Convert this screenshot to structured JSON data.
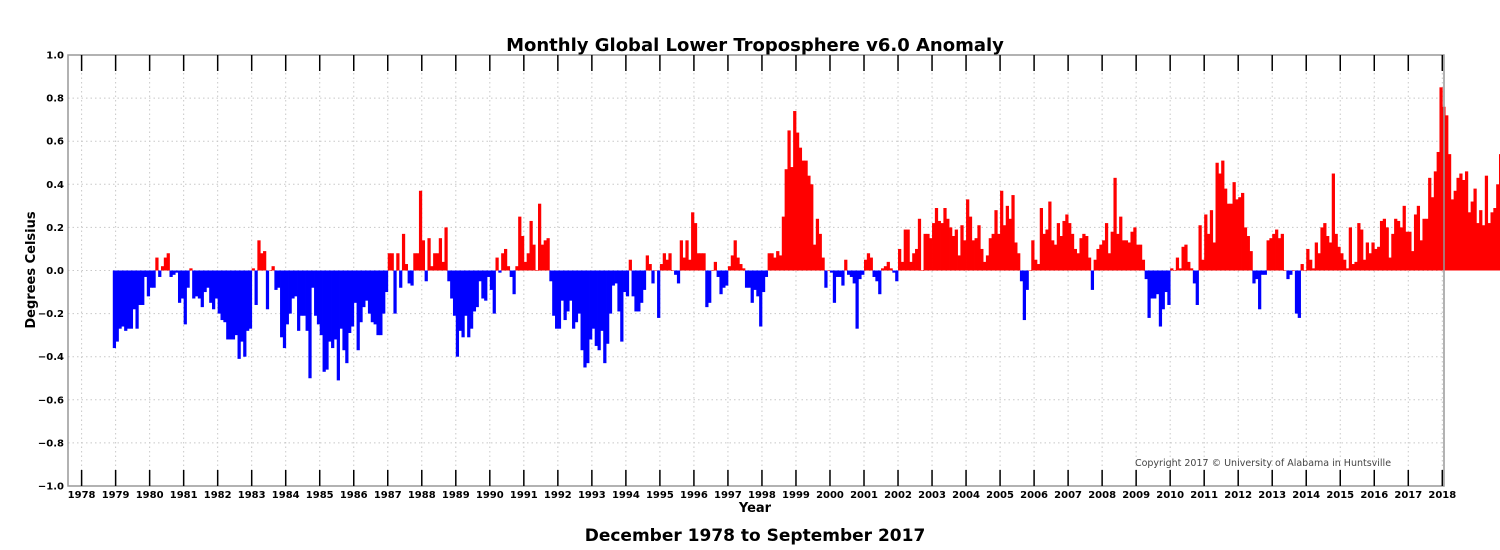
{
  "chart_data": {
    "type": "bar",
    "title": "Monthly Global Lower Troposphere v6.0 Anomaly",
    "subtitle": "December 1978 to September 2017",
    "xlabel": "Year",
    "ylabel": "Degrees Celsius",
    "annotation": "Copyright 2017 © University of Alabama in Huntsville",
    "ylim": [
      -1.0,
      1.0
    ],
    "xlim": [
      1977.6,
      2018.05
    ],
    "yticks": [
      -1.0,
      -0.8,
      -0.6,
      -0.4,
      -0.2,
      0.0,
      0.2,
      0.4,
      0.6,
      0.8,
      1.0
    ],
    "ytick_labels": [
      "−1.0",
      "−0.8",
      "−0.6",
      "−0.4",
      "−0.2",
      "0.0",
      "0.2",
      "0.4",
      "0.6",
      "0.8",
      "1.0"
    ],
    "xticks": [
      1978,
      1979,
      1980,
      1981,
      1982,
      1983,
      1984,
      1985,
      1986,
      1987,
      1988,
      1989,
      1990,
      1991,
      1992,
      1993,
      1994,
      1995,
      1996,
      1997,
      1998,
      1999,
      2000,
      2001,
      2002,
      2003,
      2004,
      2005,
      2006,
      2007,
      2008,
      2009,
      2010,
      2011,
      2012,
      2013,
      2014,
      2015,
      2016,
      2017,
      2018
    ],
    "grid": true,
    "positive_color": "#ff0000",
    "negative_color": "#0000ff",
    "start": {
      "year": 1978,
      "month": 12
    },
    "end": {
      "year": 2017,
      "month": 9
    },
    "monthly_values": [
      -0.36,
      -0.33,
      -0.27,
      -0.26,
      -0.28,
      -0.27,
      -0.27,
      -0.18,
      -0.27,
      -0.16,
      -0.16,
      -0.03,
      -0.12,
      -0.08,
      -0.08,
      0.06,
      -0.03,
      0.02,
      0.06,
      0.08,
      -0.03,
      -0.02,
      -0.01,
      -0.15,
      -0.13,
      -0.25,
      -0.08,
      0.01,
      -0.13,
      -0.12,
      -0.13,
      -0.17,
      -0.1,
      -0.08,
      -0.15,
      -0.18,
      -0.13,
      -0.2,
      -0.23,
      -0.24,
      -0.32,
      -0.32,
      -0.32,
      -0.3,
      -0.41,
      -0.33,
      -0.4,
      -0.28,
      -0.27,
      0.01,
      -0.16,
      0.14,
      0.08,
      0.09,
      -0.18,
      0.0,
      0.02,
      -0.09,
      -0.08,
      -0.31,
      -0.36,
      -0.25,
      -0.2,
      -0.13,
      -0.12,
      -0.28,
      -0.21,
      -0.21,
      -0.28,
      -0.5,
      -0.08,
      -0.21,
      -0.25,
      -0.3,
      -0.47,
      -0.46,
      -0.33,
      -0.36,
      -0.32,
      -0.51,
      -0.27,
      -0.37,
      -0.43,
      -0.29,
      -0.26,
      -0.15,
      -0.37,
      -0.24,
      -0.17,
      -0.14,
      -0.2,
      -0.24,
      -0.25,
      -0.3,
      -0.3,
      -0.2,
      -0.1,
      0.08,
      0.08,
      -0.2,
      0.08,
      -0.08,
      0.17,
      0.03,
      -0.06,
      -0.07,
      0.08,
      0.08,
      0.37,
      0.14,
      -0.05,
      0.15,
      0.02,
      0.08,
      0.08,
      0.15,
      0.04,
      0.2,
      -0.05,
      -0.13,
      -0.21,
      -0.4,
      -0.28,
      -0.31,
      -0.21,
      -0.31,
      -0.27,
      -0.19,
      -0.17,
      -0.05,
      -0.13,
      -0.14,
      -0.03,
      -0.09,
      -0.2,
      0.06,
      -0.01,
      0.08,
      0.1,
      0.02,
      -0.03,
      -0.11,
      0.02,
      0.25,
      0.16,
      0.04,
      0.08,
      0.23,
      0.12,
      0.0,
      0.31,
      0.12,
      0.14,
      0.15,
      -0.05,
      -0.21,
      -0.27,
      -0.27,
      -0.14,
      -0.23,
      -0.19,
      -0.14,
      -0.27,
      -0.24,
      -0.2,
      -0.37,
      -0.45,
      -0.43,
      -0.32,
      -0.27,
      -0.35,
      -0.37,
      -0.28,
      -0.43,
      -0.34,
      -0.2,
      -0.07,
      -0.06,
      -0.19,
      -0.33,
      -0.1,
      -0.12,
      0.05,
      -0.12,
      -0.19,
      -0.19,
      -0.15,
      -0.09,
      0.07,
      0.03,
      -0.06,
      0.0,
      -0.22,
      0.03,
      0.08,
      0.05,
      0.08,
      0.0,
      -0.02,
      -0.06,
      0.14,
      0.06,
      0.14,
      0.05,
      0.27,
      0.22,
      0.08,
      0.08,
      0.08,
      -0.17,
      -0.15,
      0.0,
      0.04,
      -0.03,
      -0.11,
      -0.08,
      -0.07,
      0.02,
      0.07,
      0.14,
      0.06,
      0.03,
      0.01,
      -0.08,
      -0.08,
      -0.15,
      -0.09,
      -0.12,
      -0.26,
      -0.1,
      -0.03,
      0.08,
      0.08,
      0.06,
      0.09,
      0.07,
      0.25,
      0.47,
      0.65,
      0.48,
      0.74,
      0.64,
      0.57,
      0.51,
      0.51,
      0.44,
      0.4,
      0.12,
      0.24,
      0.17,
      0.06,
      -0.08,
      0.0,
      -0.01,
      -0.15,
      -0.03,
      -0.03,
      -0.07,
      0.05,
      -0.02,
      -0.03,
      -0.06,
      -0.27,
      -0.04,
      -0.02,
      0.05,
      0.08,
      0.06,
      -0.03,
      -0.05,
      -0.11,
      0.01,
      0.02,
      0.04,
      0.01,
      -0.01,
      -0.05,
      0.1,
      0.04,
      0.19,
      0.19,
      0.04,
      0.08,
      0.1,
      0.24,
      0.0,
      0.17,
      0.17,
      0.15,
      0.22,
      0.29,
      0.23,
      0.22,
      0.29,
      0.24,
      0.2,
      0.16,
      0.19,
      0.07,
      0.21,
      0.14,
      0.33,
      0.25,
      0.14,
      0.15,
      0.21,
      0.1,
      0.04,
      0.07,
      0.15,
      0.17,
      0.28,
      0.17,
      0.37,
      0.21,
      0.3,
      0.24,
      0.35,
      0.13,
      0.08,
      -0.05,
      -0.23,
      -0.09,
      0.0,
      0.14,
      0.05,
      0.03,
      0.29,
      0.17,
      0.19,
      0.32,
      0.14,
      0.12,
      0.22,
      0.16,
      0.23,
      0.26,
      0.22,
      0.17,
      0.1,
      0.08,
      0.15,
      0.17,
      0.16,
      0.06,
      -0.09,
      0.05,
      0.1,
      0.12,
      0.14,
      0.22,
      0.08,
      0.18,
      0.43,
      0.17,
      0.25,
      0.14,
      0.14,
      0.13,
      0.18,
      0.2,
      0.12,
      0.12,
      0.05,
      -0.04,
      -0.22,
      -0.13,
      -0.13,
      -0.11,
      -0.26,
      -0.18,
      -0.1,
      -0.16,
      0.01,
      0.0,
      0.06,
      0.01,
      0.11,
      0.12,
      0.04,
      0.01,
      -0.06,
      -0.16,
      0.21,
      0.05,
      0.26,
      0.17,
      0.28,
      0.13,
      0.5,
      0.45,
      0.51,
      0.38,
      0.31,
      0.31,
      0.41,
      0.33,
      0.34,
      0.36,
      0.2,
      0.16,
      0.09,
      -0.06,
      -0.04,
      -0.18,
      -0.02,
      -0.02,
      0.14,
      0.15,
      0.17,
      0.19,
      0.15,
      0.17,
      0.0,
      -0.04,
      -0.02,
      0.0,
      -0.2,
      -0.22,
      0.03,
      0.0,
      0.1,
      0.05,
      0.01,
      0.13,
      0.08,
      0.2,
      0.22,
      0.16,
      0.13,
      0.45,
      0.17,
      0.11,
      0.08,
      0.05,
      0.01,
      0.2,
      0.03,
      0.04,
      0.22,
      0.19,
      0.05,
      0.13,
      0.08,
      0.13,
      0.1,
      0.11,
      0.23,
      0.24,
      0.2,
      0.06,
      0.17,
      0.24,
      0.23,
      0.2,
      0.3,
      0.18,
      0.18,
      0.09,
      0.26,
      0.3,
      0.14,
      0.24,
      0.24,
      0.43,
      0.34,
      0.46,
      0.55,
      0.85,
      0.76,
      0.72,
      0.54,
      0.33,
      0.37,
      0.43,
      0.45,
      0.42,
      0.46,
      0.27,
      0.32,
      0.38,
      0.22,
      0.28,
      0.21,
      0.44,
      0.22,
      0.27,
      0.29,
      0.4,
      0.54
    ]
  }
}
